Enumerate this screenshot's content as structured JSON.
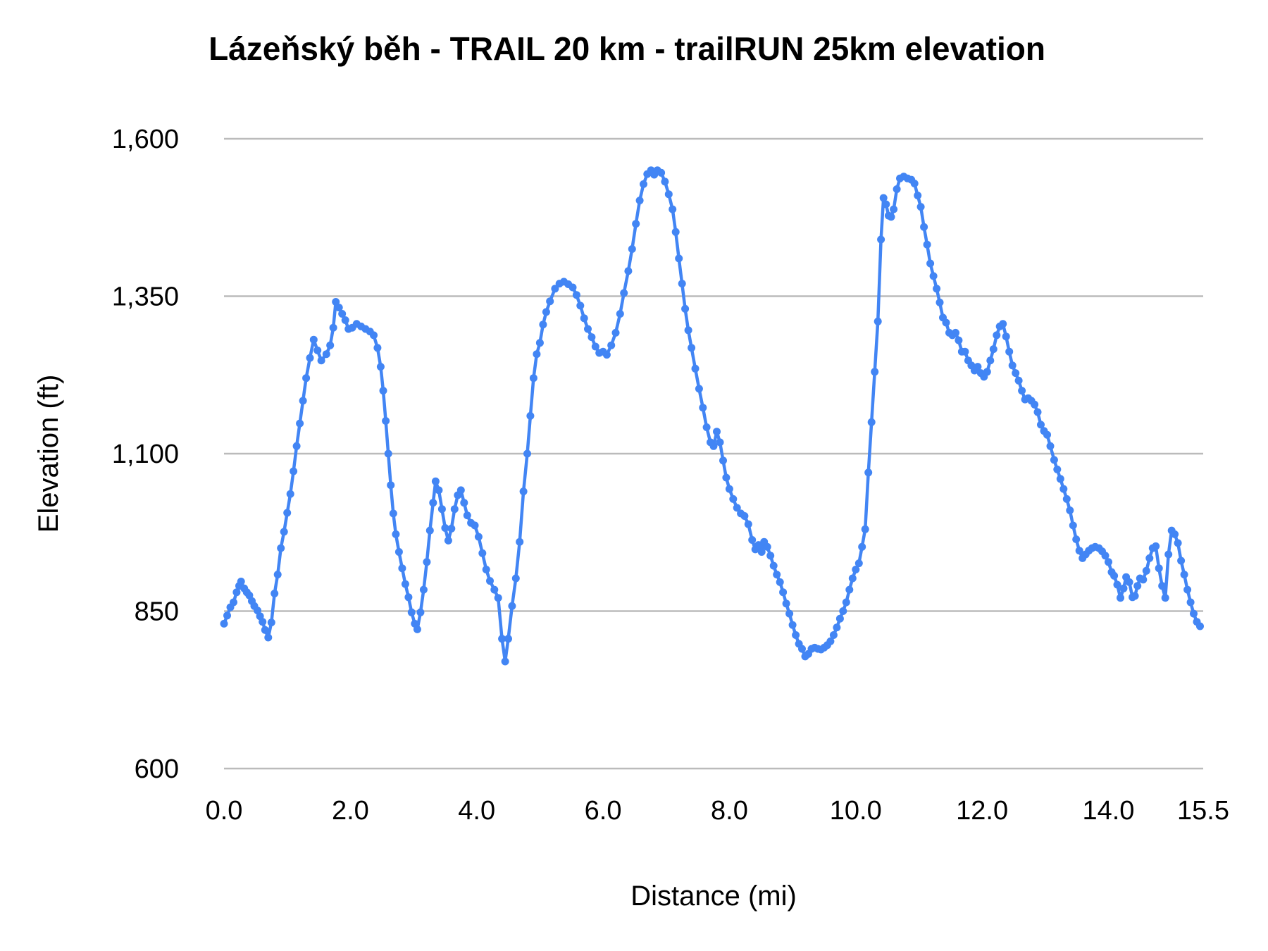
{
  "title": "Lázeňský běh - TRAIL 20 km - trailRUN 25km elevation",
  "chart_data": {
    "type": "line",
    "title": "Lázeňský běh - TRAIL 20 km - trailRUN 25km elevation",
    "xlabel": "Distance (mi)",
    "ylabel": "Elevation (ft)",
    "xlim": [
      0,
      15.5
    ],
    "ylim": [
      600,
      1600
    ],
    "grid": "horizontal-only",
    "legend": "none",
    "line_color": "#4285f4",
    "gridline_color": "#bbbbbb",
    "text_color": "#000000",
    "x_ticks": [
      {
        "v": 0,
        "label": "0.0"
      },
      {
        "v": 2,
        "label": "2.0"
      },
      {
        "v": 4,
        "label": "4.0"
      },
      {
        "v": 6,
        "label": "6.0"
      },
      {
        "v": 8,
        "label": "8.0"
      },
      {
        "v": 10,
        "label": "10.0"
      },
      {
        "v": 12,
        "label": "12.0"
      },
      {
        "v": 14,
        "label": "14.0"
      },
      {
        "v": 15.5,
        "label": "15.5"
      }
    ],
    "y_ticks": [
      {
        "v": 600,
        "label": "600"
      },
      {
        "v": 850,
        "label": "850"
      },
      {
        "v": 1100,
        "label": "1,100"
      },
      {
        "v": 1350,
        "label": "1,350"
      },
      {
        "v": 1600,
        "label": "1,600"
      }
    ],
    "series": [
      {
        "name": "elevation",
        "points": [
          [
            0.0,
            830
          ],
          [
            0.05,
            843
          ],
          [
            0.1,
            856
          ],
          [
            0.15,
            864
          ],
          [
            0.2,
            880
          ],
          [
            0.24,
            890
          ],
          [
            0.27,
            897
          ],
          [
            0.32,
            886
          ],
          [
            0.36,
            880
          ],
          [
            0.4,
            875
          ],
          [
            0.44,
            866
          ],
          [
            0.48,
            858
          ],
          [
            0.53,
            851
          ],
          [
            0.57,
            842
          ],
          [
            0.61,
            833
          ],
          [
            0.65,
            820
          ],
          [
            0.7,
            808
          ],
          [
            0.75,
            832
          ],
          [
            0.8,
            878
          ],
          [
            0.85,
            908
          ],
          [
            0.9,
            950
          ],
          [
            0.95,
            976
          ],
          [
            1.0,
            1006
          ],
          [
            1.05,
            1036
          ],
          [
            1.1,
            1072
          ],
          [
            1.15,
            1112
          ],
          [
            1.2,
            1148
          ],
          [
            1.25,
            1184
          ],
          [
            1.3,
            1220
          ],
          [
            1.36,
            1252
          ],
          [
            1.42,
            1281
          ],
          [
            1.48,
            1264
          ],
          [
            1.54,
            1248
          ],
          [
            1.62,
            1258
          ],
          [
            1.68,
            1272
          ],
          [
            1.73,
            1300
          ],
          [
            1.77,
            1341
          ],
          [
            1.82,
            1332
          ],
          [
            1.87,
            1322
          ],
          [
            1.92,
            1312
          ],
          [
            1.97,
            1298
          ],
          [
            2.03,
            1300
          ],
          [
            2.1,
            1306
          ],
          [
            2.17,
            1302
          ],
          [
            2.24,
            1298
          ],
          [
            2.31,
            1294
          ],
          [
            2.37,
            1288
          ],
          [
            2.43,
            1268
          ],
          [
            2.48,
            1238
          ],
          [
            2.52,
            1200
          ],
          [
            2.56,
            1152
          ],
          [
            2.6,
            1100
          ],
          [
            2.64,
            1050
          ],
          [
            2.68,
            1005
          ],
          [
            2.72,
            972
          ],
          [
            2.77,
            944
          ],
          [
            2.82,
            918
          ],
          [
            2.87,
            893
          ],
          [
            2.92,
            872
          ],
          [
            2.97,
            848
          ],
          [
            3.02,
            830
          ],
          [
            3.06,
            821
          ],
          [
            3.11,
            848
          ],
          [
            3.16,
            884
          ],
          [
            3.21,
            928
          ],
          [
            3.26,
            978
          ],
          [
            3.31,
            1022
          ],
          [
            3.35,
            1056
          ],
          [
            3.4,
            1042
          ],
          [
            3.45,
            1012
          ],
          [
            3.5,
            982
          ],
          [
            3.55,
            962
          ],
          [
            3.6,
            981
          ],
          [
            3.65,
            1012
          ],
          [
            3.7,
            1034
          ],
          [
            3.75,
            1042
          ],
          [
            3.8,
            1022
          ],
          [
            3.85,
            1002
          ],
          [
            3.91,
            990
          ],
          [
            3.97,
            986
          ],
          [
            4.03,
            968
          ],
          [
            4.09,
            942
          ],
          [
            4.15,
            916
          ],
          [
            4.21,
            898
          ],
          [
            4.28,
            884
          ],
          [
            4.34,
            871
          ],
          [
            4.4,
            806
          ],
          [
            4.45,
            770
          ],
          [
            4.5,
            806
          ],
          [
            4.56,
            858
          ],
          [
            4.62,
            902
          ],
          [
            4.68,
            960
          ],
          [
            4.74,
            1040
          ],
          [
            4.8,
            1100
          ],
          [
            4.85,
            1160
          ],
          [
            4.9,
            1220
          ],
          [
            4.95,
            1258
          ],
          [
            5.0,
            1276
          ],
          [
            5.05,
            1305
          ],
          [
            5.1,
            1325
          ],
          [
            5.16,
            1342
          ],
          [
            5.24,
            1362
          ],
          [
            5.31,
            1370
          ],
          [
            5.38,
            1373
          ],
          [
            5.45,
            1369
          ],
          [
            5.52,
            1364
          ],
          [
            5.58,
            1352
          ],
          [
            5.64,
            1335
          ],
          [
            5.7,
            1315
          ],
          [
            5.76,
            1298
          ],
          [
            5.82,
            1285
          ],
          [
            5.88,
            1270
          ],
          [
            5.94,
            1260
          ],
          [
            6.0,
            1262
          ],
          [
            6.06,
            1257
          ],
          [
            6.13,
            1272
          ],
          [
            6.2,
            1292
          ],
          [
            6.27,
            1322
          ],
          [
            6.33,
            1355
          ],
          [
            6.4,
            1390
          ],
          [
            6.46,
            1425
          ],
          [
            6.52,
            1465
          ],
          [
            6.58,
            1502
          ],
          [
            6.64,
            1528
          ],
          [
            6.7,
            1544
          ],
          [
            6.76,
            1550
          ],
          [
            6.81,
            1543
          ],
          [
            6.86,
            1550
          ],
          [
            6.92,
            1546
          ],
          [
            6.98,
            1532
          ],
          [
            7.04,
            1512
          ],
          [
            7.1,
            1488
          ],
          [
            7.15,
            1452
          ],
          [
            7.2,
            1410
          ],
          [
            7.25,
            1370
          ],
          [
            7.3,
            1330
          ],
          [
            7.35,
            1296
          ],
          [
            7.4,
            1268
          ],
          [
            7.46,
            1235
          ],
          [
            7.52,
            1203
          ],
          [
            7.58,
            1173
          ],
          [
            7.64,
            1142
          ],
          [
            7.7,
            1118
          ],
          [
            7.75,
            1112
          ],
          [
            7.8,
            1135
          ],
          [
            7.85,
            1118
          ],
          [
            7.9,
            1089
          ],
          [
            7.95,
            1062
          ],
          [
            8.0,
            1044
          ],
          [
            8.06,
            1028
          ],
          [
            8.12,
            1014
          ],
          [
            8.18,
            1005
          ],
          [
            8.24,
            1001
          ],
          [
            8.3,
            988
          ],
          [
            8.36,
            963
          ],
          [
            8.41,
            948
          ],
          [
            8.46,
            955
          ],
          [
            8.51,
            944
          ],
          [
            8.55,
            960
          ],
          [
            8.6,
            952
          ],
          [
            8.65,
            938
          ],
          [
            8.7,
            922
          ],
          [
            8.75,
            908
          ],
          [
            8.8,
            896
          ],
          [
            8.85,
            880
          ],
          [
            8.9,
            862
          ],
          [
            8.95,
            846
          ],
          [
            9.0,
            828
          ],
          [
            9.05,
            812
          ],
          [
            9.1,
            798
          ],
          [
            9.15,
            790
          ],
          [
            9.2,
            778
          ],
          [
            9.25,
            782
          ],
          [
            9.3,
            790
          ],
          [
            9.35,
            792
          ],
          [
            9.4,
            790
          ],
          [
            9.45,
            789
          ],
          [
            9.5,
            792
          ],
          [
            9.55,
            796
          ],
          [
            9.6,
            802
          ],
          [
            9.65,
            812
          ],
          [
            9.7,
            824
          ],
          [
            9.75,
            838
          ],
          [
            9.8,
            850
          ],
          [
            9.85,
            864
          ],
          [
            9.9,
            884
          ],
          [
            9.95,
            902
          ],
          [
            10.0,
            916
          ],
          [
            10.05,
            926
          ],
          [
            10.1,
            952
          ],
          [
            10.15,
            980
          ],
          [
            10.2,
            1070
          ],
          [
            10.25,
            1150
          ],
          [
            10.3,
            1230
          ],
          [
            10.35,
            1310
          ],
          [
            10.4,
            1440
          ],
          [
            10.44,
            1506
          ],
          [
            10.48,
            1496
          ],
          [
            10.52,
            1478
          ],
          [
            10.56,
            1476
          ],
          [
            10.6,
            1488
          ],
          [
            10.65,
            1520
          ],
          [
            10.7,
            1537
          ],
          [
            10.76,
            1540
          ],
          [
            10.82,
            1537
          ],
          [
            10.88,
            1535
          ],
          [
            10.93,
            1529
          ],
          [
            10.98,
            1510
          ],
          [
            11.03,
            1492
          ],
          [
            11.08,
            1460
          ],
          [
            11.13,
            1432
          ],
          [
            11.18,
            1402
          ],
          [
            11.23,
            1382
          ],
          [
            11.28,
            1362
          ],
          [
            11.33,
            1340
          ],
          [
            11.38,
            1316
          ],
          [
            11.43,
            1308
          ],
          [
            11.48,
            1292
          ],
          [
            11.53,
            1288
          ],
          [
            11.58,
            1292
          ],
          [
            11.63,
            1280
          ],
          [
            11.68,
            1262
          ],
          [
            11.73,
            1262
          ],
          [
            11.78,
            1248
          ],
          [
            11.83,
            1240
          ],
          [
            11.88,
            1232
          ],
          [
            11.93,
            1238
          ],
          [
            11.98,
            1228
          ],
          [
            12.03,
            1222
          ],
          [
            12.08,
            1230
          ],
          [
            12.13,
            1248
          ],
          [
            12.18,
            1266
          ],
          [
            12.23,
            1288
          ],
          [
            12.28,
            1302
          ],
          [
            12.33,
            1306
          ],
          [
            12.38,
            1286
          ],
          [
            12.43,
            1262
          ],
          [
            12.48,
            1240
          ],
          [
            12.53,
            1228
          ],
          [
            12.58,
            1216
          ],
          [
            12.63,
            1200
          ],
          [
            12.68,
            1186
          ],
          [
            12.73,
            1188
          ],
          [
            12.78,
            1184
          ],
          [
            12.83,
            1178
          ],
          [
            12.88,
            1166
          ],
          [
            12.93,
            1146
          ],
          [
            12.98,
            1136
          ],
          [
            13.03,
            1130
          ],
          [
            13.08,
            1112
          ],
          [
            13.14,
            1090
          ],
          [
            13.19,
            1075
          ],
          [
            13.24,
            1060
          ],
          [
            13.29,
            1044
          ],
          [
            13.34,
            1028
          ],
          [
            13.39,
            1010
          ],
          [
            13.44,
            986
          ],
          [
            13.49,
            964
          ],
          [
            13.54,
            946
          ],
          [
            13.59,
            934
          ],
          [
            13.64,
            940
          ],
          [
            13.69,
            946
          ],
          [
            13.74,
            950
          ],
          [
            13.79,
            952
          ],
          [
            13.85,
            950
          ],
          [
            13.9,
            945
          ],
          [
            13.95,
            938
          ],
          [
            14.0,
            928
          ],
          [
            14.05,
            912
          ],
          [
            14.09,
            906
          ],
          [
            14.14,
            892
          ],
          [
            14.19,
            871
          ],
          [
            14.24,
            886
          ],
          [
            14.28,
            904
          ],
          [
            14.33,
            896
          ],
          [
            14.38,
            872
          ],
          [
            14.42,
            874
          ],
          [
            14.46,
            890
          ],
          [
            14.5,
            902
          ],
          [
            14.55,
            900
          ],
          [
            14.6,
            914
          ],
          [
            14.65,
            934
          ],
          [
            14.7,
            950
          ],
          [
            14.75,
            953
          ],
          [
            14.8,
            918
          ],
          [
            14.85,
            890
          ],
          [
            14.9,
            871
          ],
          [
            14.95,
            940
          ],
          [
            15.0,
            978
          ],
          [
            15.05,
            972
          ],
          [
            15.1,
            958
          ],
          [
            15.15,
            930
          ],
          [
            15.2,
            908
          ],
          [
            15.25,
            884
          ],
          [
            15.3,
            864
          ],
          [
            15.35,
            846
          ],
          [
            15.4,
            833
          ],
          [
            15.45,
            826
          ]
        ]
      }
    ]
  }
}
